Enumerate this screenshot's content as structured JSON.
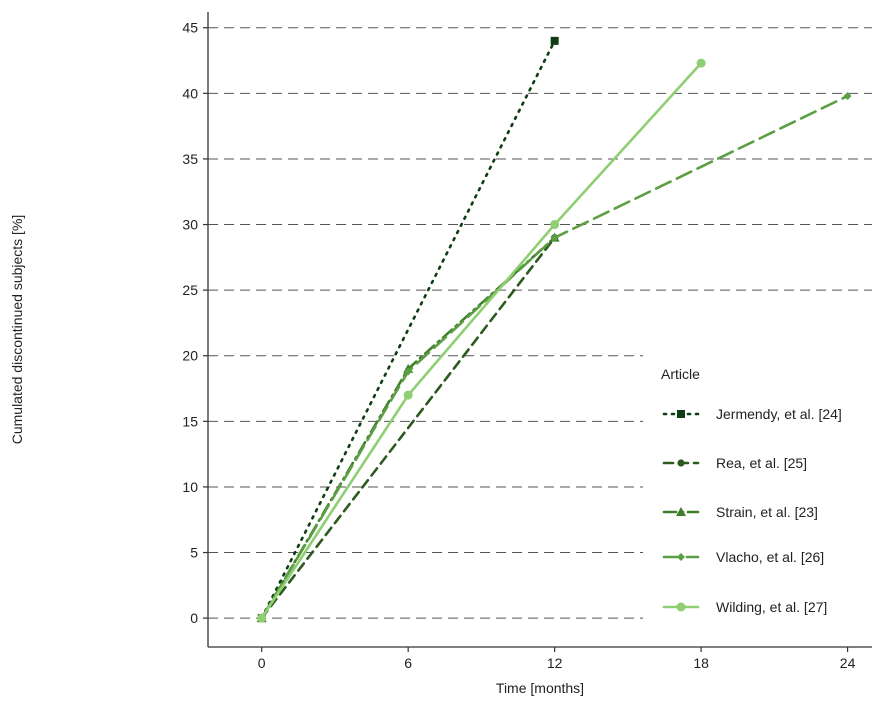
{
  "chart_data": {
    "type": "line",
    "xlabel": "Time [months]",
    "ylabel": "Cumulated discontinued subjects [%]",
    "xlim": [
      -2.2,
      25
    ],
    "ylim": [
      -2.2,
      46.2
    ],
    "xticks": [
      0,
      6,
      12,
      18,
      24
    ],
    "yticks": [
      0,
      5,
      10,
      15,
      20,
      25,
      30,
      35,
      40,
      45
    ],
    "grid": "horizontal dashed",
    "legend": {
      "title": "Article",
      "placement": "right"
    },
    "series": [
      {
        "name": "Jermendy, et al. [24]",
        "color": "#0e3d14",
        "line_style": "dotted",
        "marker": "square",
        "points": [
          [
            0,
            0
          ],
          [
            12,
            44
          ]
        ]
      },
      {
        "name": "Rea, et al. [25]",
        "color": "#2d5a1f",
        "line_style": "dashed",
        "marker": "circle",
        "points": [
          [
            0,
            0
          ],
          [
            12,
            29
          ]
        ]
      },
      {
        "name": "Strain, et al. [23]",
        "color": "#3f7f2a",
        "line_style": "dash-dot",
        "marker": "triangle",
        "points": [
          [
            0,
            0
          ],
          [
            6,
            19
          ],
          [
            12,
            29
          ]
        ]
      },
      {
        "name": "Vlacho, et al. [26]",
        "color": "#5c9e43",
        "line_style": "long-dash",
        "marker": "diamond",
        "points": [
          [
            0,
            0
          ],
          [
            6,
            18.8
          ],
          [
            12,
            29
          ],
          [
            24,
            39.8
          ]
        ]
      },
      {
        "name": "Wilding, et al. [27]",
        "color": "#8fce72",
        "line_style": "solid",
        "marker": "circle",
        "points": [
          [
            0,
            0
          ],
          [
            6,
            17
          ],
          [
            12,
            30
          ],
          [
            18,
            42.3
          ]
        ]
      }
    ]
  }
}
